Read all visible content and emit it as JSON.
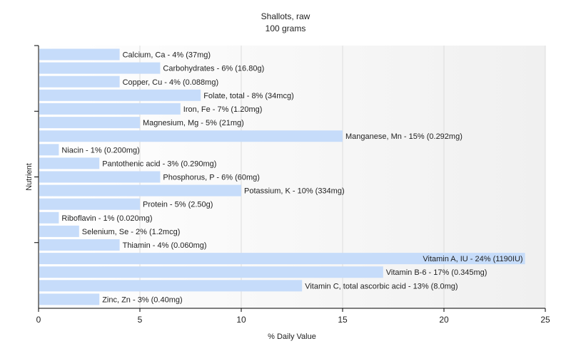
{
  "chart_data": {
    "type": "bar",
    "orientation": "horizontal",
    "title": "Shallots, raw",
    "subtitle": "100 grams",
    "xlabel": "% Daily Value",
    "ylabel": "Nutrient",
    "xlim": [
      0,
      25
    ],
    "xticks": [
      "0",
      "5",
      "10",
      "15",
      "20",
      "25"
    ],
    "grid": true,
    "bar_color": "#c6dcfa",
    "categories": [
      "Calcium, Ca",
      "Carbohydrates",
      "Copper, Cu",
      "Folate, total",
      "Iron, Fe",
      "Magnesium, Mg",
      "Manganese, Mn",
      "Niacin",
      "Pantothenic acid",
      "Phosphorus, P",
      "Potassium, K",
      "Protein",
      "Riboflavin",
      "Selenium, Se",
      "Thiamin",
      "Vitamin A, IU",
      "Vitamin B-6",
      "Vitamin C, total ascorbic acid",
      "Zinc, Zn"
    ],
    "values": [
      4,
      6,
      4,
      8,
      7,
      5,
      15,
      1,
      3,
      6,
      10,
      5,
      1,
      2,
      4,
      24,
      17,
      13,
      3
    ],
    "labels": [
      "Calcium, Ca - 4% (37mg)",
      "Carbohydrates - 6% (16.80g)",
      "Copper, Cu - 4% (0.088mg)",
      "Folate, total - 8% (34mcg)",
      "Iron, Fe - 7% (1.20mg)",
      "Magnesium, Mg - 5% (21mg)",
      "Manganese, Mn - 15% (0.292mg)",
      "Niacin - 1% (0.200mg)",
      "Pantothenic acid - 3% (0.290mg)",
      "Phosphorus, P - 6% (60mg)",
      "Potassium, K - 10% (334mg)",
      "Protein - 5% (2.50g)",
      "Riboflavin - 1% (0.020mg)",
      "Selenium, Se - 2% (1.2mcg)",
      "Thiamin - 4% (0.060mg)",
      "Vitamin A, IU - 24% (1190IU)",
      "Vitamin B-6 - 17% (0.345mg)",
      "Vitamin C, total ascorbic acid - 13% (8.0mg)",
      "Zinc, Zn - 3% (0.40mg)"
    ]
  }
}
